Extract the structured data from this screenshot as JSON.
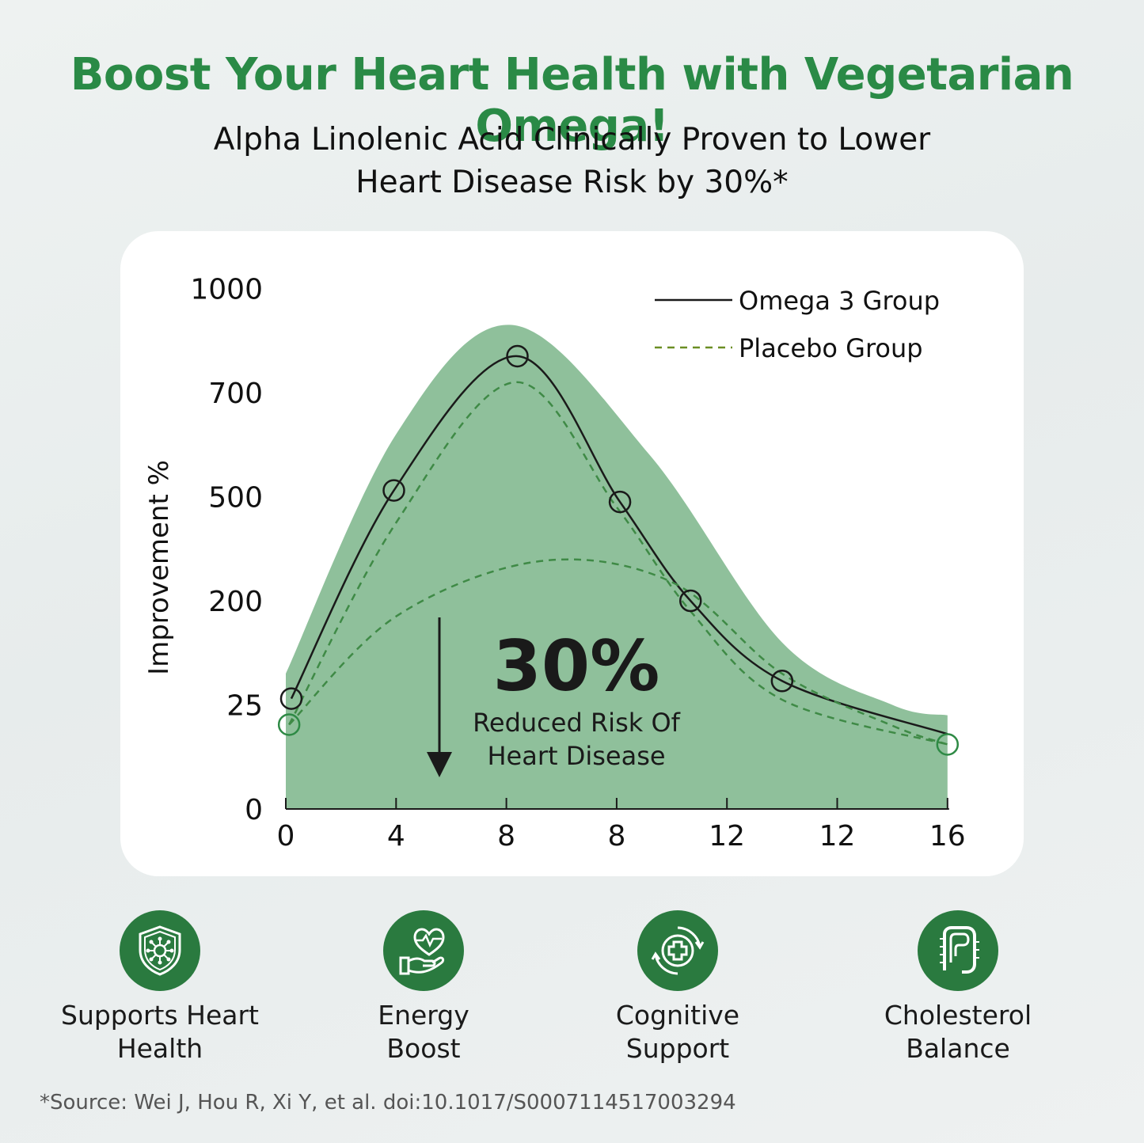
{
  "title": "Boost Your Heart Health with Vegetarian Omega!",
  "subtitle": {
    "line1": "Alpha Linolenic Acid Clinically Proven to Lower",
    "line2": "Heart Disease Risk by 30%*"
  },
  "chart_data": {
    "type": "line",
    "title": "",
    "ylabel": "Improvement %",
    "y_tick_labels": [
      "0",
      "25",
      "200",
      "500",
      "700",
      "1000"
    ],
    "x_tick_labels": [
      "0",
      "4",
      "8",
      "8",
      "12",
      "12",
      "16"
    ],
    "x_positions": [
      0,
      1,
      2,
      3,
      4,
      5,
      6
    ],
    "y_level_values": [
      0,
      1,
      2,
      3,
      4,
      5
    ],
    "legend": {
      "placement": "top-right"
    },
    "series": [
      {
        "name": "Omega 3 Group",
        "style": "solid",
        "color": "#1a1a1a",
        "points": [
          {
            "x": 0.05,
            "y": 1.06
          },
          {
            "x": 0.98,
            "y": 3.06
          },
          {
            "x": 2.1,
            "y": 4.35
          },
          {
            "x": 3.03,
            "y": 2.95
          },
          {
            "x": 3.67,
            "y": 2.0
          },
          {
            "x": 4.5,
            "y": 1.23
          },
          {
            "x": 6.0,
            "y": 0.72
          }
        ],
        "markers": [
          0,
          1,
          2,
          3,
          4,
          5
        ]
      },
      {
        "name": "Placebo Group",
        "style": "dashed",
        "color": "#3f8a46",
        "points": [
          {
            "x": 0.03,
            "y": 0.81
          },
          {
            "x": 1.0,
            "y": 2.75
          },
          {
            "x": 2.08,
            "y": 4.1
          },
          {
            "x": 3.0,
            "y": 2.9
          },
          {
            "x": 3.67,
            "y": 1.9
          },
          {
            "x": 4.5,
            "y": 1.05
          },
          {
            "x": 6.0,
            "y": 0.62
          }
        ],
        "markers": [
          0,
          6
        ]
      },
      {
        "name": "",
        "style": "dashed",
        "color": "#3f8a46",
        "points": [
          {
            "x": 0.03,
            "y": 0.81
          },
          {
            "x": 1.0,
            "y": 1.85
          },
          {
            "x": 2.3,
            "y": 2.38
          },
          {
            "x": 3.5,
            "y": 2.18
          },
          {
            "x": 4.5,
            "y": 1.3
          },
          {
            "x": 5.5,
            "y": 0.8
          },
          {
            "x": 6.0,
            "y": 0.62
          }
        ],
        "markers": []
      }
    ],
    "area": {
      "color": "#8fc09b",
      "points": [
        {
          "x": 0.0,
          "y": 1.3
        },
        {
          "x": 1.0,
          "y": 3.6
        },
        {
          "x": 2.05,
          "y": 4.65
        },
        {
          "x": 3.3,
          "y": 3.4
        },
        {
          "x": 4.5,
          "y": 1.6
        },
        {
          "x": 5.5,
          "y": 1.0
        },
        {
          "x": 6.0,
          "y": 0.9
        }
      ]
    },
    "annotation": {
      "big": "30%",
      "line1": "Reduced Risk Of",
      "line2": "Heart Disease"
    }
  },
  "features": [
    {
      "icon": "shield-virus-icon",
      "line1": "Supports Heart",
      "line2": "Health"
    },
    {
      "icon": "heart-hand-icon",
      "line1": "Energy",
      "line2": "Boost"
    },
    {
      "icon": "medical-cross-cycle-icon",
      "line1": "Cognitive",
      "line2": "Support"
    },
    {
      "icon": "intestine-icon",
      "line1": "Cholesterol",
      "line2": "Balance"
    }
  ],
  "source": "*Source: Wei J, Hou R, Xi Y, et al. doi:10.1017/S0007114517003294",
  "colors": {
    "brand_green": "#2a8a46",
    "icon_circle": "#2a7a3f",
    "area_fill": "#8fc09b",
    "card": "#ffffff"
  }
}
